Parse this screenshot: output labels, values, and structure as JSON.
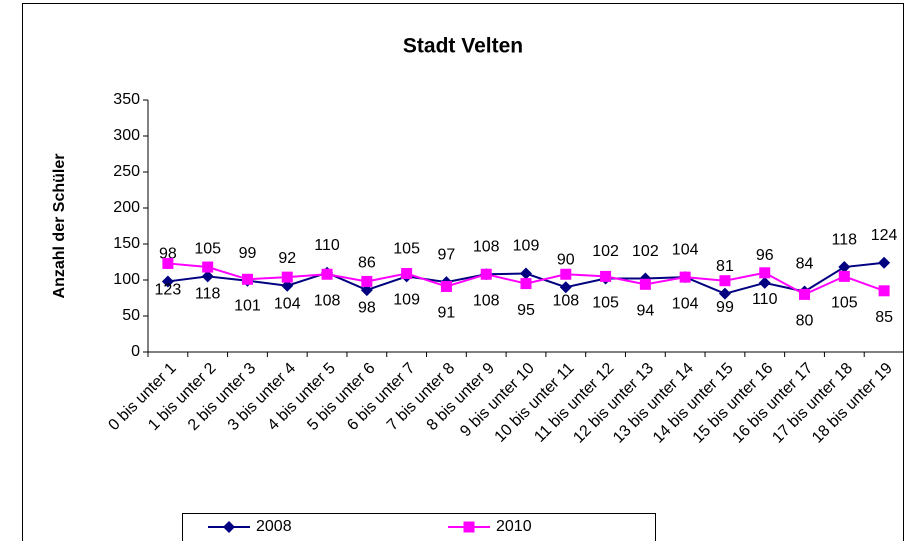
{
  "chart_data": {
    "type": "line",
    "title": "Stadt Velten",
    "y_label": "Anzahl der Schüler",
    "categories": [
      "0 bis unter 1",
      "1 bis unter 2",
      "2 bis unter 3",
      "3 bis unter 4",
      "4 bis unter 5",
      "5 bis unter 6",
      "6 bis unter 7",
      "7 bis unter 8",
      "8 bis unter 9",
      "9 bis unter 10",
      "10 bis unter 11",
      "11 bis unter 12",
      "12 bis unter 13",
      "13 bis unter 14",
      "14 bis unter 15",
      "15 bis unter 16",
      "16 bis unter 17",
      "17 bis unter 18",
      "18 bis unter 19"
    ],
    "series": [
      {
        "name": "2008",
        "color": "#000080",
        "marker": "diamond",
        "values": [
          98,
          105,
          99,
          92,
          110,
          86,
          105,
          97,
          108,
          109,
          90,
          102,
          102,
          104,
          81,
          96,
          84,
          118,
          124
        ]
      },
      {
        "name": "2010",
        "color": "#ff00ff",
        "marker": "square",
        "values": [
          123,
          118,
          101,
          104,
          108,
          98,
          109,
          91,
          108,
          95,
          108,
          105,
          94,
          104,
          99,
          110,
          80,
          105,
          85
        ]
      }
    ],
    "ylim": [
      0,
      350
    ],
    "yticks": [
      0,
      50,
      100,
      150,
      200,
      250,
      300,
      350
    ],
    "legend": "bottom"
  }
}
